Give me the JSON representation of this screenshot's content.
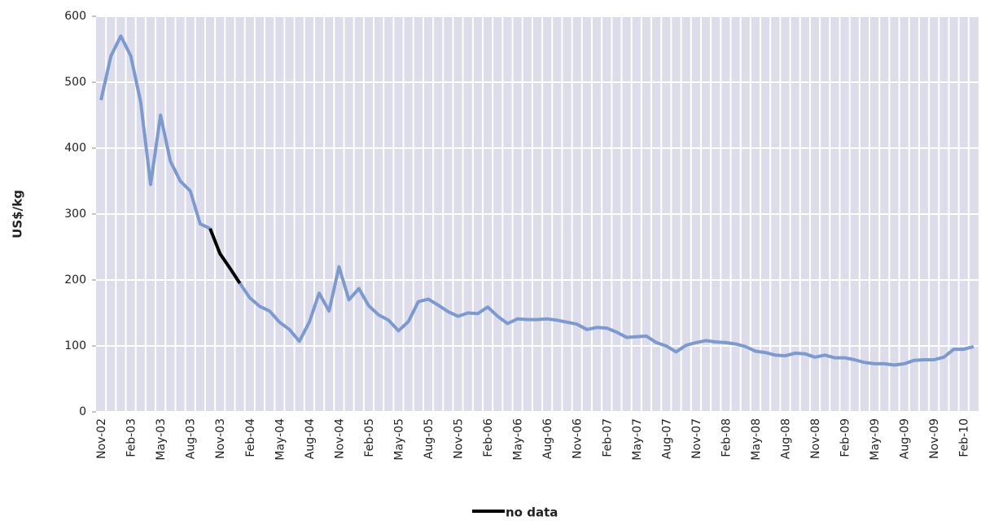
{
  "chart_data": {
    "type": "line",
    "y_label": "US$/kg",
    "categories": [
      "Nov-02",
      null,
      null,
      "Feb-03",
      null,
      null,
      "May-03",
      null,
      null,
      "Aug-03",
      null,
      null,
      "Nov-03",
      null,
      null,
      "Feb-04",
      null,
      null,
      "May-04",
      null,
      null,
      "Aug-04",
      null,
      null,
      "Nov-04",
      null,
      null,
      "Feb-05",
      null,
      null,
      "May-05",
      null,
      null,
      "Aug-05",
      null,
      null,
      "Nov-05",
      null,
      null,
      "Feb-06",
      null,
      null,
      "May-06",
      null,
      null,
      "Aug-06",
      null,
      null,
      "Nov-06",
      null,
      null,
      "Feb-07",
      null,
      null,
      "May-07",
      null,
      null,
      "Aug-07",
      null,
      null,
      "Nov-07",
      null,
      null,
      "Feb-08",
      null,
      null,
      "May-08",
      null,
      null,
      "Aug-08",
      null,
      null,
      "Nov-08",
      null,
      null,
      "Feb-09",
      null,
      null,
      "May-09",
      null,
      null,
      "Aug-09",
      null,
      null,
      "Nov-09",
      null,
      null,
      "Feb-10",
      null
    ],
    "series": [
      {
        "color": "#7b9bd0",
        "values": [
          473,
          540,
          570,
          540,
          470,
          345,
          450,
          380,
          350,
          335,
          285,
          278,
          null,
          null,
          195,
          173,
          160,
          153,
          136,
          125,
          107,
          136,
          180,
          153,
          220,
          170,
          187,
          161,
          147,
          139,
          123,
          137,
          167,
          171,
          162,
          152,
          145,
          150,
          149,
          159,
          145,
          134,
          141,
          140,
          140,
          141,
          139,
          136,
          133,
          125,
          128,
          127,
          121,
          113,
          114,
          115,
          105,
          100,
          91,
          101,
          105,
          108,
          106,
          105,
          103,
          99,
          92,
          90,
          86,
          85,
          89,
          88,
          83,
          86,
          82,
          82,
          79,
          75,
          73,
          73,
          71,
          73,
          78,
          79,
          79,
          83,
          95,
          95,
          99
        ]
      },
      {
        "name": "no data",
        "color": "#000000",
        "values": [
          null,
          null,
          null,
          null,
          null,
          null,
          null,
          null,
          null,
          null,
          null,
          278,
          240,
          218,
          195,
          null,
          null,
          null,
          null,
          null,
          null,
          null,
          null,
          null,
          null,
          null,
          null,
          null,
          null,
          null,
          null,
          null,
          null,
          null,
          null,
          null,
          null,
          null,
          null,
          null,
          null,
          null,
          null,
          null,
          null,
          null,
          null,
          null,
          null,
          null,
          null,
          null,
          null,
          null,
          null,
          null,
          null,
          null,
          null,
          null,
          null,
          null,
          null,
          null,
          null,
          null,
          null,
          null,
          null,
          null,
          null,
          null,
          null,
          null,
          null,
          null,
          null,
          null,
          null,
          null,
          null,
          null,
          null,
          null,
          null,
          null,
          null,
          null,
          null
        ]
      }
    ],
    "ylim": [
      0,
      600
    ],
    "yticks": [
      0,
      100,
      200,
      300,
      400,
      500,
      600
    ],
    "grid": true,
    "legend": "bottom"
  }
}
